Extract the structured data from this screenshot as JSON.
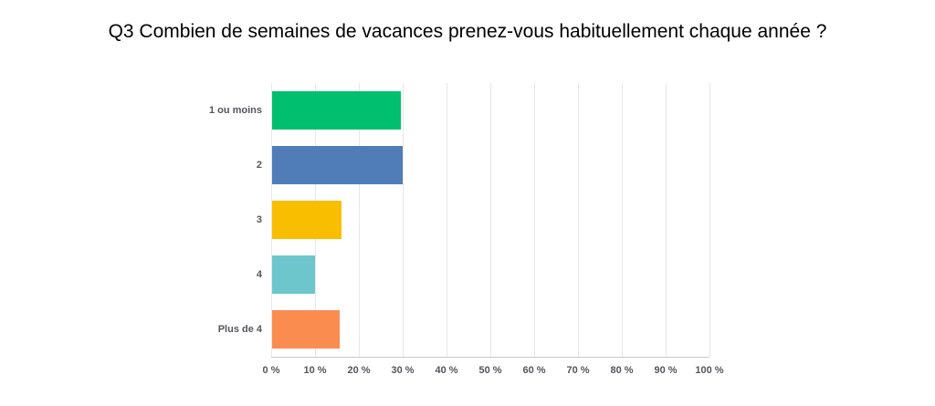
{
  "chart_data": {
    "type": "bar",
    "orientation": "horizontal",
    "title": "Q3 Combien de semaines de vacances prenez-vous habituellement chaque année ?",
    "categories": [
      "1 ou moins",
      "2",
      "3",
      "4",
      "Plus de 4"
    ],
    "values": [
      29.3,
      29.8,
      15.9,
      9.8,
      15.4
    ],
    "unit": "%",
    "bar_colors": [
      "#00BF6F",
      "#507CB8",
      "#F9BE00",
      "#6DC6CC",
      "#FA8C50"
    ],
    "x_ticks": [
      "0 %",
      "10 %",
      "20 %",
      "30 %",
      "40 %",
      "50 %",
      "60 %",
      "70 %",
      "80 %",
      "90 %",
      "100 %"
    ],
    "x_tick_values": [
      0,
      10,
      20,
      30,
      40,
      50,
      60,
      70,
      80,
      90,
      100
    ],
    "xlim": [
      0,
      100
    ],
    "xlabel": "",
    "ylabel": "",
    "grid": true,
    "legend": false,
    "colors": {
      "grid_line": "#e7e7e7",
      "axis_line": "#c9c9c9",
      "label_text": "#54565b",
      "title_text": "#000000",
      "background": "#ffffff"
    }
  }
}
